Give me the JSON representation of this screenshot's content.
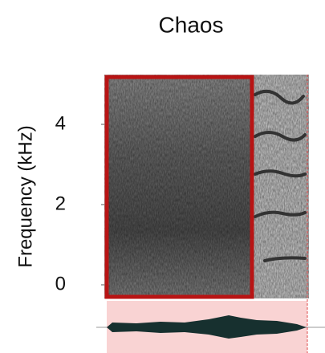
{
  "chart_data": {
    "type": "spectrogram",
    "title": "Chaos",
    "y_label": "Frequency (kHz)",
    "ylim": [
      -0.34,
      5.24
    ],
    "yticks": [
      0,
      2,
      4
    ],
    "box_color": "#b81414",
    "waveform_bg": "#f9d3d3"
  }
}
